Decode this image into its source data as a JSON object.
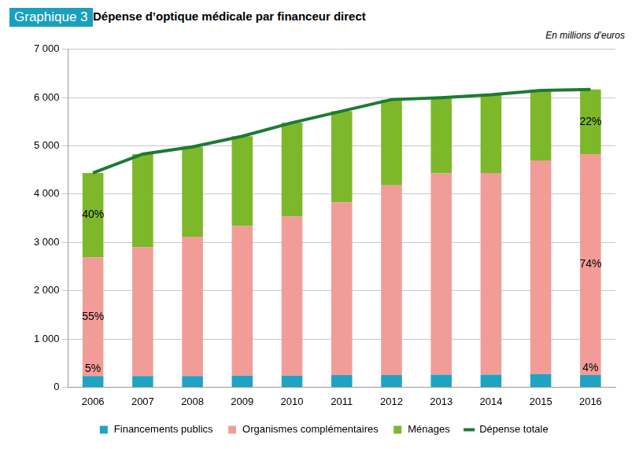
{
  "chart_data": {
    "type": "bar",
    "figure_label": "Graphique 3",
    "title": "Dépense d’optique médicale par financeur direct",
    "subtitle": "En millions d’euros",
    "categories": [
      "2006",
      "2007",
      "2008",
      "2009",
      "2010",
      "2011",
      "2012",
      "2013",
      "2014",
      "2015",
      "2016"
    ],
    "series": [
      {
        "name": "Financements publics",
        "color": "#1fa3c4",
        "values": [
          230,
          230,
          230,
          240,
          240,
          250,
          250,
          260,
          260,
          270,
          250
        ]
      },
      {
        "name": "Organismes complémentaires",
        "color": "#f29c97",
        "values": [
          2460,
          2670,
          2890,
          3100,
          3300,
          3580,
          3930,
          4170,
          4180,
          4430,
          4580
        ]
      },
      {
        "name": "Ménages",
        "color": "#7cb82a",
        "values": [
          1750,
          1930,
          1860,
          1860,
          1940,
          1890,
          1780,
          1570,
          1620,
          1450,
          1340
        ]
      },
      {
        "name": "Dépense totale",
        "color": "#1d7a34",
        "type": "line",
        "marker": "none",
        "line_style": "solid",
        "values": [
          4440,
          4830,
          4980,
          5200,
          5480,
          5720,
          5960,
          6000,
          6060,
          6150,
          6170
        ]
      }
    ],
    "annotations": [
      {
        "x": "2006",
        "series": "Financements publics",
        "label": "5%"
      },
      {
        "x": "2006",
        "series": "Organismes complémentaires",
        "label": "55%"
      },
      {
        "x": "2006",
        "series": "Ménages",
        "label": "40%"
      },
      {
        "x": "2016",
        "series": "Financements publics",
        "label": "4%"
      },
      {
        "x": "2016",
        "series": "Organismes complémentaires",
        "label": "74%"
      },
      {
        "x": "2016",
        "series": "Ménages",
        "label": "22%"
      }
    ],
    "ylim": [
      0,
      7000
    ],
    "yticks": [
      0,
      {
        "value": 1000,
        "label": "1 000"
      },
      {
        "value": 2000,
        "label": "2 000"
      },
      {
        "value": 3000,
        "label": "3 000"
      },
      {
        "value": 4000,
        "label": "4 000"
      },
      {
        "value": 5000,
        "label": "5 000"
      },
      {
        "value": 6000,
        "label": "6 000"
      },
      {
        "value": 7000,
        "label": "7 000"
      }
    ],
    "stacked": true,
    "grid": true,
    "legend": "bottom"
  }
}
